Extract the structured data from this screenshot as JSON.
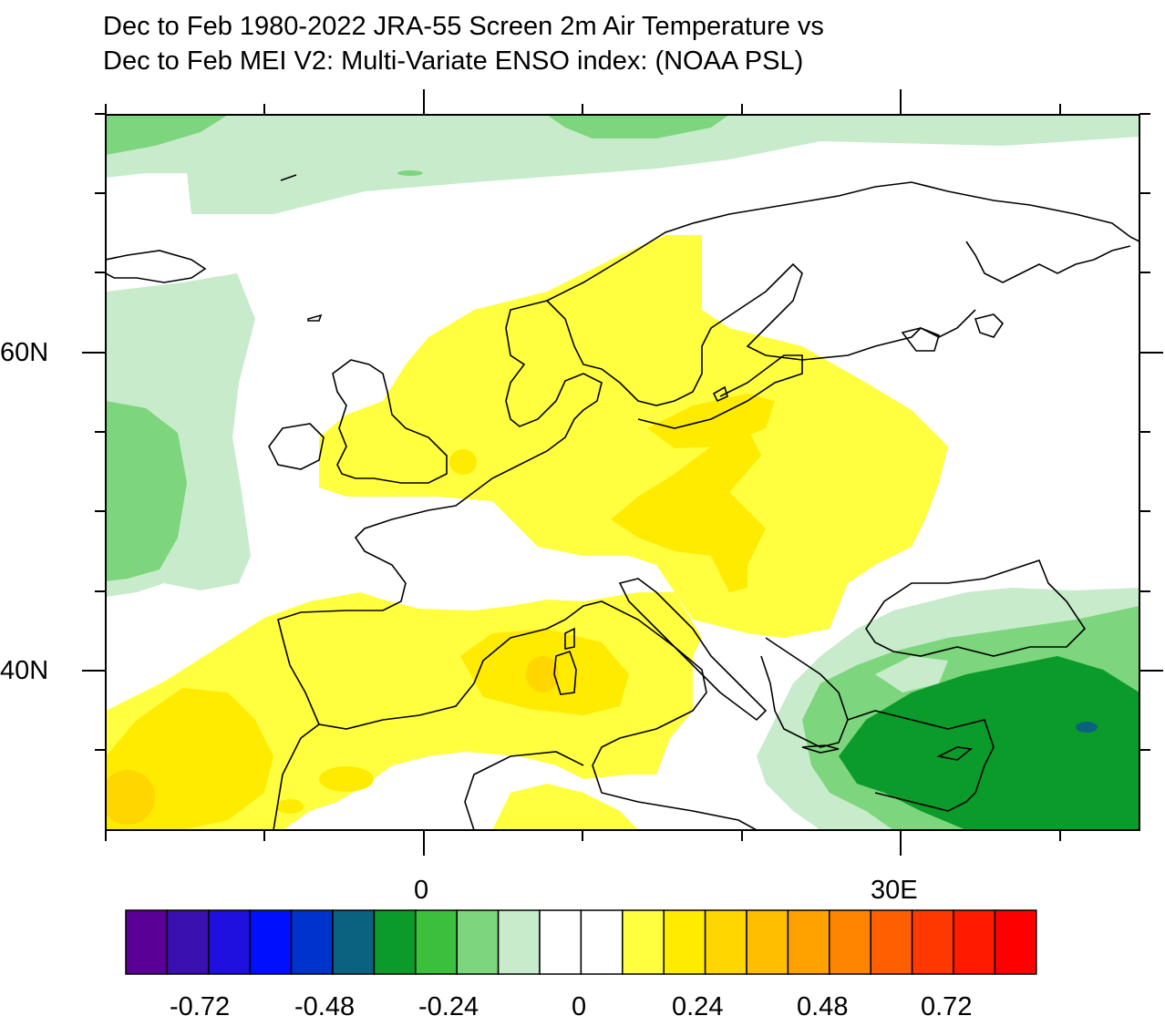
{
  "title_line1": "Dec to Feb 1980-2022 JRA-55 Screen 2m Air Temperature vs",
  "title_line2": "Dec to Feb MEI V2: Multi-Variate ENSO index: (NOAA PSL)",
  "map": {
    "lon_range": [
      -30,
      45
    ],
    "lat_range": [
      27,
      72
    ],
    "lat_labels": [
      "60N",
      "40N"
    ],
    "lon_labels": [
      "0",
      "30E"
    ],
    "projection": "cylindrical-equidistant",
    "coastlines": true
  },
  "colorbar": {
    "colors": [
      "#5b0097",
      "#3a10b0",
      "#2010e0",
      "#0010ff",
      "#0033cc",
      "#0a6280",
      "#0a9b2a",
      "#3cbf3c",
      "#7dd67d",
      "#c7ebcb",
      "#ffffff",
      "#ffffff",
      "#ffff40",
      "#ffeb00",
      "#ffd600",
      "#ffbf00",
      "#ffa200",
      "#ff8500",
      "#ff5f00",
      "#ff3800",
      "#ff1a00",
      "#ff0000"
    ],
    "labels": [
      "-0.72",
      "-0.48",
      "-0.24",
      "0",
      "0.24",
      "0.48",
      "0.72"
    ]
  }
}
